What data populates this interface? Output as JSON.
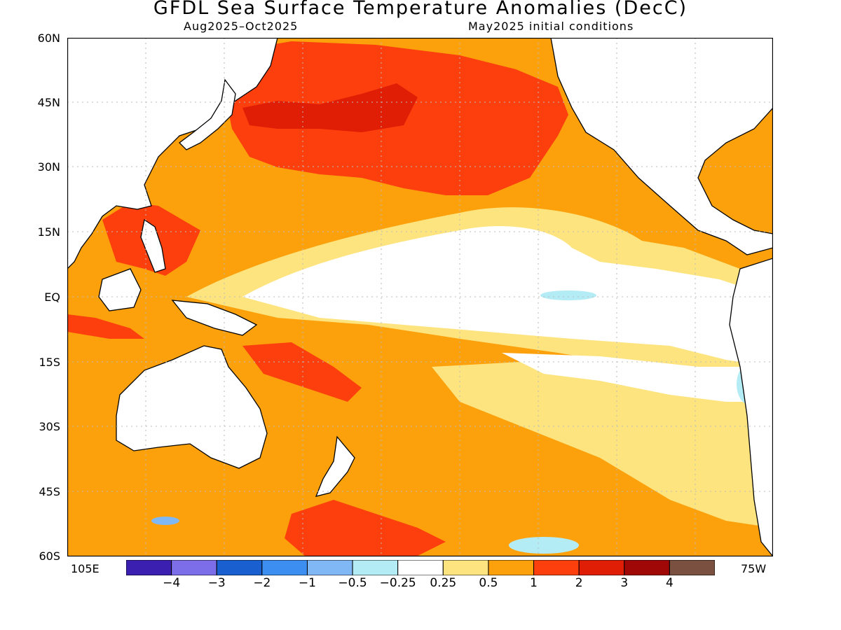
{
  "title": "GFDL Sea Surface Temperature Anomalies (DecC)",
  "subtitle_left": "Aug2025–Oct2025",
  "subtitle_right": "May2025 initial conditions",
  "lat_labels": [
    "60N",
    "45N",
    "30N",
    "15N",
    "EQ",
    "15S",
    "30S",
    "45S",
    "60S"
  ],
  "lon_left": "105E",
  "lon_right": "75W",
  "colorbar": {
    "colors": [
      "#3a1fb0",
      "#7b6ee8",
      "#1a5fcf",
      "#3c8ef0",
      "#7fb8f5",
      "#b4ecf6",
      "#ffffff",
      "#fde47f",
      "#fca10c",
      "#fc3f0c",
      "#e01e06",
      "#a00808",
      "#7a5040"
    ],
    "labels": [
      "−4",
      "−3",
      "−2",
      "−1",
      "−0.5",
      "−0.25",
      "0.25",
      "0.5",
      "1",
      "2",
      "3",
      "4"
    ]
  },
  "palette": {
    "land": "#ffffff",
    "coast": "#000000",
    "grid": "#bbbbbb",
    "c_025": "#fde47f",
    "c_05": "#fca10c",
    "c_1": "#fc3f0c",
    "c_2": "#e01e06",
    "c_neg025": "#b4ecf6",
    "c_neg05": "#7fb8f5",
    "c_neg1": "#3c8ef0"
  }
}
